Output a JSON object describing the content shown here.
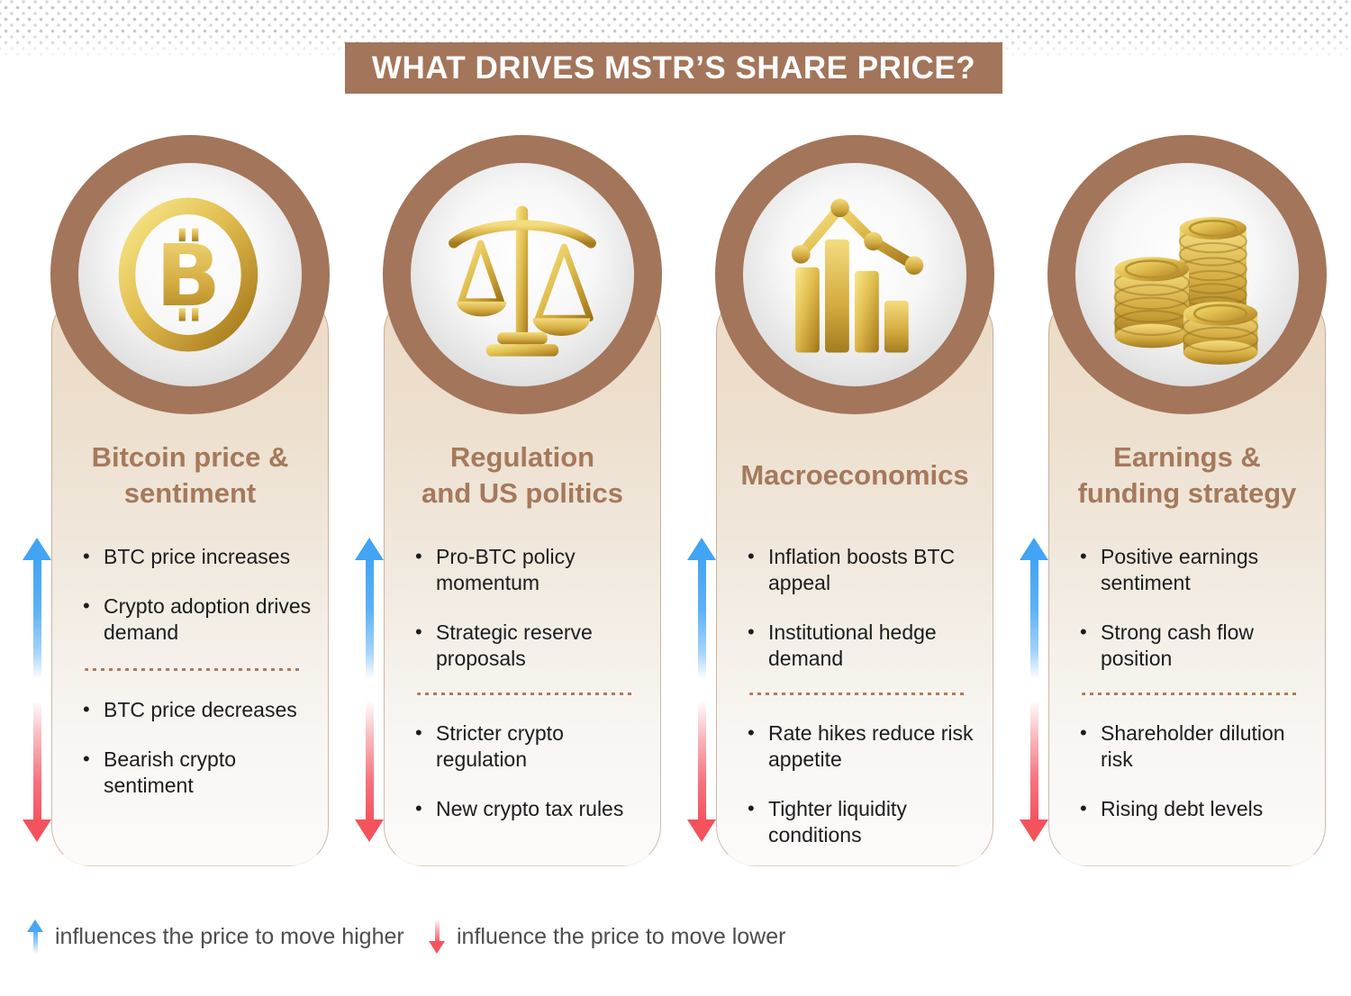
{
  "title": "WHAT DRIVES MSTR’S SHARE PRICE?",
  "columns": [
    {
      "icon": "bitcoin-coin-icon",
      "title_lines": [
        "Bitcoin price &",
        "sentiment"
      ],
      "positives": [
        "BTC price increases",
        "Crypto adoption drives demand"
      ],
      "negatives": [
        "BTC price decreases",
        "Bearish crypto sentiment"
      ]
    },
    {
      "icon": "balance-scale-icon",
      "title_lines": [
        "Regulation",
        "and US politics"
      ],
      "positives": [
        "Pro-BTC policy momentum",
        "Strategic reserve proposals"
      ],
      "negatives": [
        "Stricter crypto regulation",
        "New crypto tax rules"
      ]
    },
    {
      "icon": "bar-chart-trend-icon",
      "title_lines": [
        "Macroeconomics"
      ],
      "positives": [
        "Inflation boosts BTC appeal",
        "Institutional hedge demand"
      ],
      "negatives": [
        "Rate hikes reduce risk appetite",
        "Tighter liquidity conditions"
      ]
    },
    {
      "icon": "coin-stacks-icon",
      "title_lines": [
        "Earnings &",
        "funding strategy"
      ],
      "positives": [
        "Positive earnings sentiment",
        "Strong cash flow position"
      ],
      "negatives": [
        "Shareholder dilution risk",
        "Rising debt levels"
      ]
    }
  ],
  "legend": {
    "higher": "influences the price to move higher",
    "lower": "influence the price to move lower"
  },
  "colors": {
    "accent_brown": "#A3755A",
    "heading_brown": "#A5795C",
    "arrow_up_blue": "#41A4F4",
    "arrow_down_red": "#F4525D",
    "gold": "#D9B344",
    "card_top_beige": "#ECDBC6"
  }
}
